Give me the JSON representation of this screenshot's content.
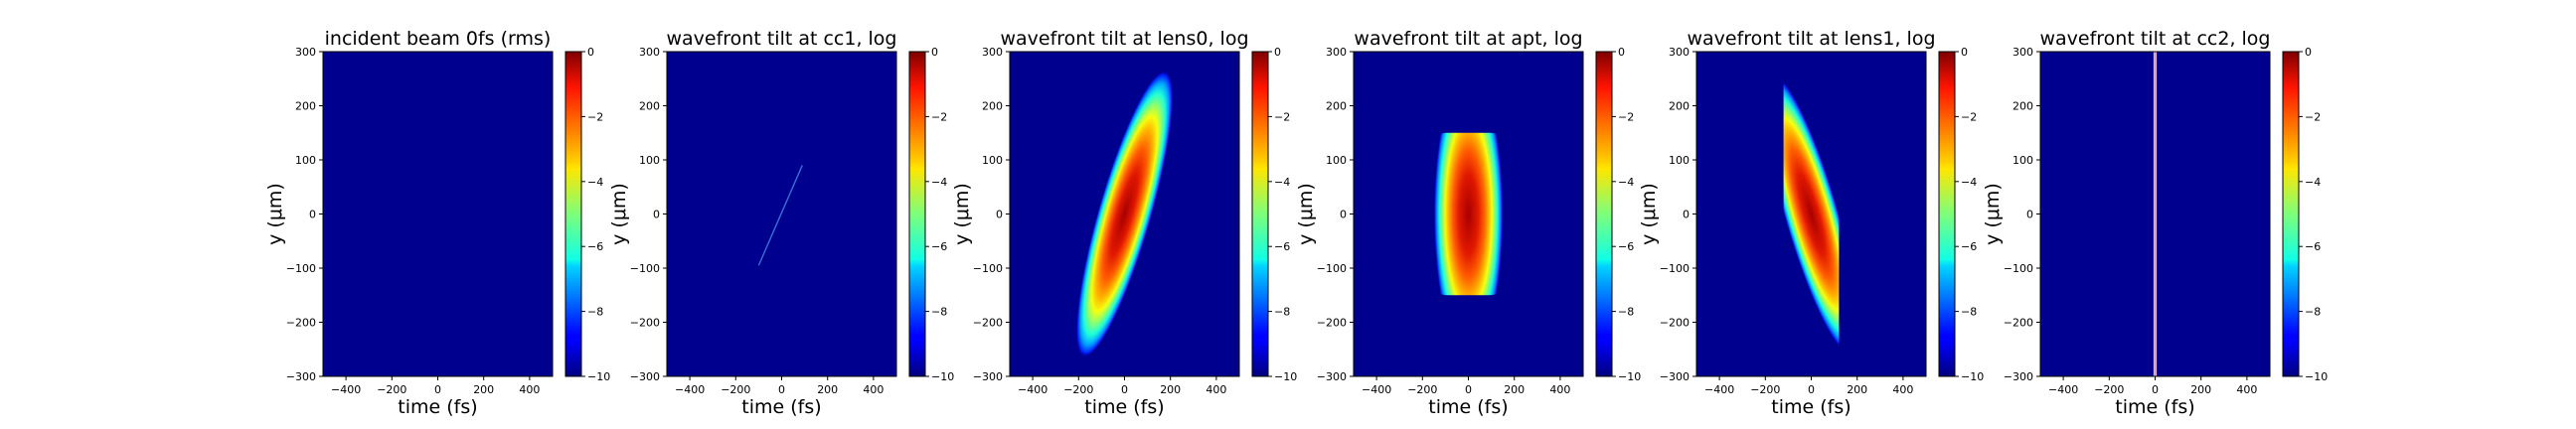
{
  "chart_data": [
    {
      "type": "heatmap",
      "title": "incident beam 0fs (rms)",
      "xlabel": "time (fs)",
      "ylabel": "y (μm)",
      "xlim": [
        -500,
        500
      ],
      "ylim": [
        -300,
        300
      ],
      "x_ticks": [
        "−400",
        "−200",
        "0",
        "200",
        "400"
      ],
      "y_ticks": [
        "300",
        "200",
        "100",
        "0",
        "−100",
        "−200",
        "−300"
      ],
      "colorbar": {
        "range": [
          -10,
          0
        ],
        "ticks": [
          "0",
          "−2",
          "−4",
          "−6",
          "−8",
          "−10"
        ]
      },
      "feature": {
        "kind": "empty"
      }
    },
    {
      "type": "heatmap",
      "title": "wavefront tilt at cc1, log",
      "xlabel": "time (fs)",
      "ylabel": "y (μm)",
      "xlim": [
        -500,
        500
      ],
      "ylim": [
        -300,
        300
      ],
      "x_ticks": [
        "−400",
        "−200",
        "0",
        "200",
        "400"
      ],
      "y_ticks": [
        "300",
        "200",
        "100",
        "0",
        "−100",
        "−200",
        "−300"
      ],
      "colorbar": {
        "range": [
          -10,
          0
        ],
        "ticks": [
          "0",
          "−2",
          "−4",
          "−6",
          "−8",
          "−10"
        ]
      },
      "feature": {
        "kind": "line",
        "from": [
          -100,
          -95
        ],
        "to": [
          90,
          90
        ],
        "color": "#3a6fd8"
      }
    },
    {
      "type": "heatmap",
      "title": "wavefront tilt at lens0, log",
      "xlabel": "time (fs)",
      "ylabel": "y (μm)",
      "xlim": [
        -500,
        500
      ],
      "ylim": [
        -300,
        300
      ],
      "x_ticks": [
        "−400",
        "−200",
        "0",
        "200",
        "400"
      ],
      "y_ticks": [
        "300",
        "200",
        "100",
        "0",
        "−100",
        "−200",
        "−300"
      ],
      "colorbar": {
        "range": [
          -10,
          0
        ],
        "ticks": [
          "0",
          "−2",
          "−4",
          "−6",
          "−8",
          "−10"
        ]
      },
      "feature": {
        "kind": "blob",
        "cx": 0,
        "cy": 0,
        "rx": 115,
        "ry": 275,
        "rotate": 16,
        "yclip": null
      }
    },
    {
      "type": "heatmap",
      "title": "wavefront tilt at apt, log",
      "xlabel": "time (fs)",
      "ylabel": "y (μm)",
      "xlim": [
        -500,
        500
      ],
      "ylim": [
        -300,
        300
      ],
      "x_ticks": [
        "−400",
        "−200",
        "0",
        "200",
        "400"
      ],
      "y_ticks": [
        "300",
        "200",
        "100",
        "0",
        "−100",
        "−200",
        "−300"
      ],
      "colorbar": {
        "range": [
          -10,
          0
        ],
        "ticks": [
          "0",
          "−2",
          "−4",
          "−6",
          "−8",
          "−10"
        ]
      },
      "feature": {
        "kind": "blob",
        "cx": 0,
        "cy": 0,
        "rx": 150,
        "ry": 260,
        "rotate": 0,
        "yclip": [
          -150,
          150
        ]
      }
    },
    {
      "type": "heatmap",
      "title": "wavefront tilt at lens1, log",
      "xlabel": "time (fs)",
      "ylabel": "y (μm)",
      "xlim": [
        -500,
        500
      ],
      "ylim": [
        -300,
        300
      ],
      "x_ticks": [
        "−400",
        "−200",
        "0",
        "200",
        "400"
      ],
      "y_ticks": [
        "300",
        "200",
        "100",
        "0",
        "−100",
        "−200",
        "−300"
      ],
      "colorbar": {
        "range": [
          -10,
          0
        ],
        "ticks": [
          "0",
          "−2",
          "−4",
          "−6",
          "−8",
          "−10"
        ]
      },
      "feature": {
        "kind": "blob",
        "cx": 0,
        "cy": 0,
        "rx": 115,
        "ry": 270,
        "rotate": -16,
        "yclip": [
          -265,
          265
        ]
      }
    },
    {
      "type": "heatmap",
      "title": "wavefront tilt at cc2, log",
      "xlabel": "time (fs)",
      "ylabel": "y (μm)",
      "xlim": [
        -500,
        500
      ],
      "ylim": [
        -300,
        300
      ],
      "x_ticks": [
        "−400",
        "−200",
        "0",
        "200",
        "400"
      ],
      "y_ticks": [
        "300",
        "200",
        "100",
        "0",
        "−100",
        "−200",
        "−300"
      ],
      "colorbar": {
        "range": [
          -10,
          0
        ],
        "ticks": [
          "0",
          "−2",
          "−4",
          "−6",
          "−8",
          "−10"
        ]
      },
      "feature": {
        "kind": "vline",
        "x": 0,
        "color": "#e08a8a",
        "edge": "#7fffd0"
      }
    }
  ]
}
